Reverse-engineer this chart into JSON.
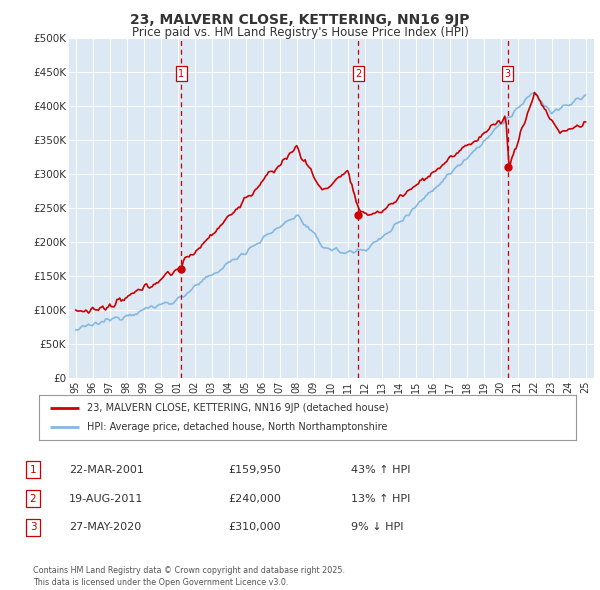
{
  "title": "23, MALVERN CLOSE, KETTERING, NN16 9JP",
  "subtitle": "Price paid vs. HM Land Registry's House Price Index (HPI)",
  "ylim": [
    0,
    500000
  ],
  "yticks": [
    0,
    50000,
    100000,
    150000,
    200000,
    250000,
    300000,
    350000,
    400000,
    450000,
    500000
  ],
  "ytick_labels": [
    "£0",
    "£50K",
    "£100K",
    "£150K",
    "£200K",
    "£250K",
    "£300K",
    "£350K",
    "£400K",
    "£450K",
    "£500K"
  ],
  "plot_bg_color": "#dce9f5",
  "red_color": "#cc0000",
  "blue_color": "#85b8e0",
  "vline_color": "#cc0000",
  "sale1_date": 2001.22,
  "sale1_price": 159950,
  "sale2_date": 2011.63,
  "sale2_price": 240000,
  "sale3_date": 2020.41,
  "sale3_price": 310000,
  "legend_label_red": "23, MALVERN CLOSE, KETTERING, NN16 9JP (detached house)",
  "legend_label_blue": "HPI: Average price, detached house, North Northamptonshire",
  "table_rows": [
    {
      "num": "1",
      "date": "22-MAR-2001",
      "price": "£159,950",
      "hpi": "43% ↑ HPI"
    },
    {
      "num": "2",
      "date": "19-AUG-2011",
      "price": "£240,000",
      "hpi": "13% ↑ HPI"
    },
    {
      "num": "3",
      "date": "27-MAY-2020",
      "price": "£310,000",
      "hpi": "9% ↓ HPI"
    }
  ],
  "footnote": "Contains HM Land Registry data © Crown copyright and database right 2025.\nThis data is licensed under the Open Government Licence v3.0."
}
